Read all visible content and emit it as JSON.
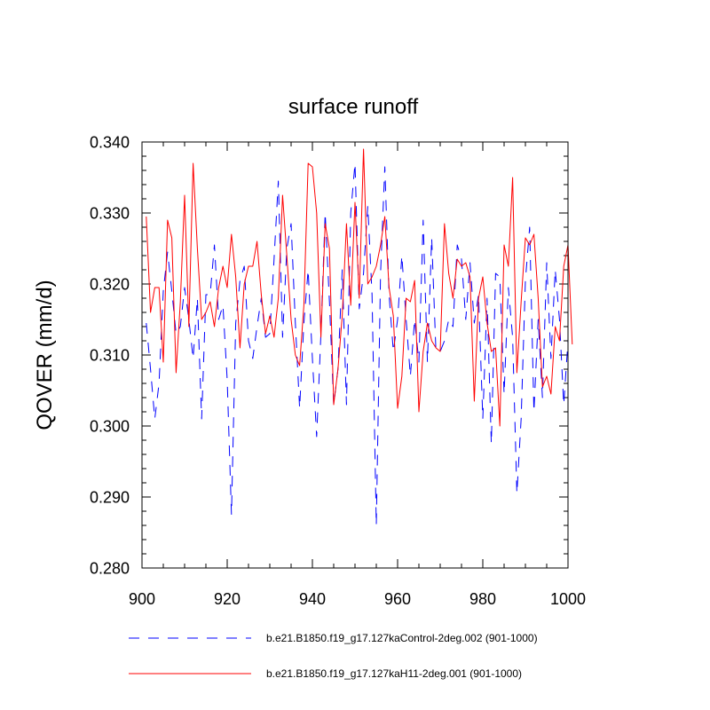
{
  "chart_data": {
    "type": "line",
    "title": "surface runoff",
    "xlabel": "",
    "ylabel": "QOVER  (mm/d)",
    "xlim": [
      900,
      1000
    ],
    "ylim": [
      0.28,
      0.34
    ],
    "x_ticks": [
      900,
      920,
      940,
      960,
      980,
      1000
    ],
    "x_tick_labels": [
      "900",
      "920",
      "940",
      "960",
      "980",
      "1000"
    ],
    "y_ticks": [
      0.28,
      0.29,
      0.3,
      0.31,
      0.32,
      0.33,
      0.34
    ],
    "y_tick_labels": [
      "0.280",
      "0.290",
      "0.300",
      "0.310",
      "0.320",
      "0.330",
      "0.340"
    ],
    "grid": false,
    "legend_position": "bottom",
    "series": [
      {
        "name": "b.e21.B1850.f19_g17.127kaControl-2deg.002 (901-1000)",
        "color": "#0000ff",
        "style": "dashed",
        "x_start": 901,
        "values": [
          0.3145,
          0.308,
          0.301,
          0.306,
          0.319,
          0.3245,
          0.319,
          0.313,
          0.314,
          0.3195,
          0.315,
          0.3095,
          0.318,
          0.301,
          0.3185,
          0.3185,
          0.3255,
          0.315,
          0.317,
          0.3065,
          0.2875,
          0.3145,
          0.3205,
          0.3225,
          0.312,
          0.3095,
          0.314,
          0.318,
          0.3125,
          0.313,
          0.3235,
          0.3345,
          0.3125,
          0.325,
          0.3285,
          0.3145,
          0.3025,
          0.3145,
          0.322,
          0.3095,
          0.2985,
          0.313,
          0.33,
          0.3175,
          0.303,
          0.308,
          0.322,
          0.303,
          0.33,
          0.337,
          0.3165,
          0.3215,
          0.331,
          0.3185,
          0.286,
          0.3215,
          0.3365,
          0.3185,
          0.3105,
          0.315,
          0.324,
          0.315,
          0.307,
          0.315,
          0.309,
          0.329,
          0.309,
          0.3265,
          0.3105,
          0.3105,
          0.312,
          0.315,
          0.314,
          0.3255,
          0.3235,
          0.315,
          0.323,
          0.3145,
          0.3185,
          0.301,
          0.318,
          0.2975,
          0.3215,
          0.321,
          0.3045,
          0.3195,
          0.3125,
          0.2905,
          0.301,
          0.3205,
          0.328,
          0.302,
          0.315,
          0.304,
          0.323,
          0.3095,
          0.322,
          0.315,
          0.303,
          0.312
        ]
      },
      {
        "name": "b.e21.B1850.f19_g17.127kaH11-2deg.001 (901-1000)",
        "color": "#ff0000",
        "style": "solid",
        "x_start": 901,
        "values": [
          0.3295,
          0.316,
          0.3195,
          0.3195,
          0.309,
          0.329,
          0.3265,
          0.3075,
          0.3175,
          0.3325,
          0.314,
          0.337,
          0.325,
          0.315,
          0.316,
          0.3175,
          0.314,
          0.3195,
          0.3225,
          0.3195,
          0.327,
          0.321,
          0.311,
          0.32,
          0.3225,
          0.3225,
          0.326,
          0.3185,
          0.313,
          0.3155,
          0.3125,
          0.318,
          0.3325,
          0.324,
          0.315,
          0.31,
          0.3085,
          0.317,
          0.337,
          0.3365,
          0.33,
          0.3125,
          0.3285,
          0.325,
          0.303,
          0.308,
          0.3155,
          0.3285,
          0.317,
          0.3315,
          0.318,
          0.339,
          0.32,
          0.321,
          0.3225,
          0.3255,
          0.3295,
          0.3195,
          0.3155,
          0.3025,
          0.307,
          0.318,
          0.3175,
          0.3205,
          0.302,
          0.3105,
          0.3145,
          0.312,
          0.311,
          0.3105,
          0.3285,
          0.3215,
          0.318,
          0.3235,
          0.3225,
          0.323,
          0.321,
          0.3035,
          0.318,
          0.321,
          0.3145,
          0.3105,
          0.311,
          0.3,
          0.3255,
          0.3225,
          0.335,
          0.3075,
          0.3175,
          0.3265,
          0.3255,
          0.327,
          0.318,
          0.3055,
          0.307,
          0.3045,
          0.314,
          0.312,
          0.3225,
          0.3255,
          0.3115
        ]
      }
    ]
  }
}
